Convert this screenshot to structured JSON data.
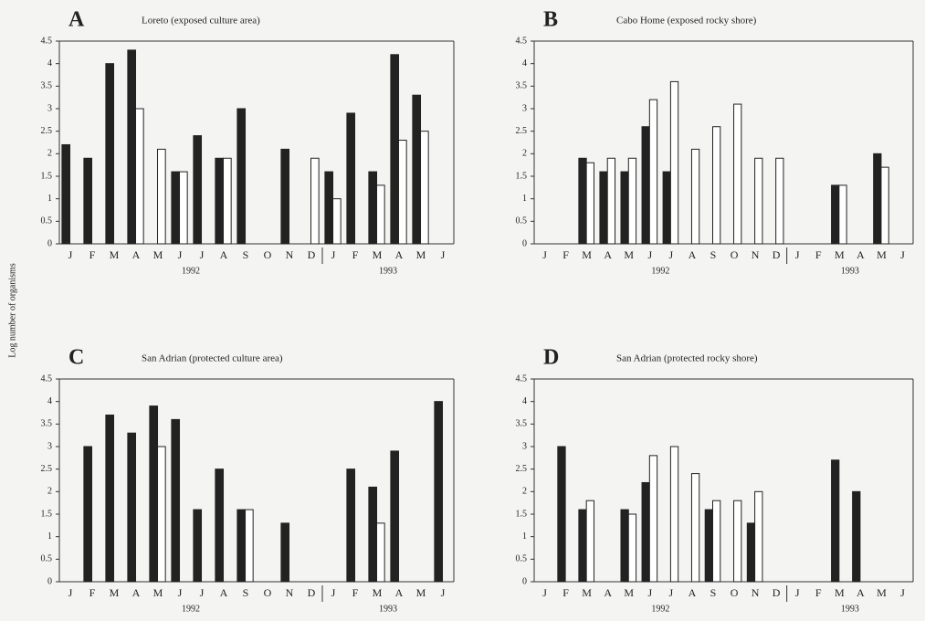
{
  "ylabel": "Log number of organisms",
  "chart_data": [
    {
      "type": "bar",
      "panel": "A",
      "title": "Loreto (exposed culture area)",
      "categories": [
        "J",
        "F",
        "M",
        "A",
        "M",
        "J",
        "J",
        "A",
        "S",
        "O",
        "N",
        "D",
        "J",
        "F",
        "M",
        "A",
        "M",
        "J"
      ],
      "year_labels": [
        "1992",
        "1993"
      ],
      "series": [
        {
          "color": "#222222",
          "values": [
            2.2,
            1.9,
            4.0,
            4.3,
            null,
            1.6,
            2.4,
            1.9,
            3.0,
            null,
            2.1,
            null,
            1.6,
            2.9,
            1.6,
            4.2,
            3.3,
            null
          ]
        },
        {
          "color": "#ffffff",
          "values": [
            null,
            null,
            null,
            3.0,
            2.1,
            1.6,
            null,
            1.9,
            null,
            null,
            null,
            1.9,
            1.0,
            null,
            1.3,
            2.3,
            2.5,
            null
          ]
        }
      ],
      "ylim": [
        0,
        4.5
      ],
      "yticks": [
        0,
        0.5,
        1,
        1.5,
        2,
        2.5,
        3,
        3.5,
        4,
        4.5
      ]
    },
    {
      "type": "bar",
      "panel": "B",
      "title": "Cabo Home (exposed rocky shore)",
      "categories": [
        "J",
        "F",
        "M",
        "A",
        "M",
        "J",
        "J",
        "A",
        "S",
        "O",
        "N",
        "D",
        "J",
        "F",
        "M",
        "A",
        "M",
        "J"
      ],
      "year_labels": [
        "1992",
        "1993"
      ],
      "series": [
        {
          "color": "#222222",
          "values": [
            null,
            null,
            1.9,
            1.6,
            1.6,
            2.6,
            1.6,
            null,
            null,
            null,
            null,
            null,
            null,
            null,
            1.3,
            null,
            2.0,
            null
          ]
        },
        {
          "color": "#ffffff",
          "values": [
            null,
            null,
            1.8,
            1.9,
            1.9,
            3.2,
            3.6,
            2.1,
            2.6,
            3.1,
            1.9,
            1.9,
            null,
            null,
            1.3,
            null,
            1.7,
            null
          ]
        }
      ],
      "ylim": [
        0,
        4.5
      ],
      "yticks": [
        0,
        0.5,
        1,
        1.5,
        2,
        2.5,
        3,
        3.5,
        4,
        4.5
      ]
    },
    {
      "type": "bar",
      "panel": "C",
      "title": "San Adrian (protected culture area)",
      "categories": [
        "J",
        "F",
        "M",
        "A",
        "M",
        "J",
        "J",
        "A",
        "S",
        "O",
        "N",
        "D",
        "J",
        "F",
        "M",
        "A",
        "M",
        "J"
      ],
      "year_labels": [
        "1992",
        "1993"
      ],
      "series": [
        {
          "color": "#222222",
          "values": [
            null,
            3.0,
            3.7,
            3.3,
            3.9,
            3.6,
            1.6,
            2.5,
            1.6,
            null,
            1.3,
            null,
            null,
            2.5,
            2.1,
            2.9,
            null,
            4.0
          ]
        },
        {
          "color": "#ffffff",
          "values": [
            null,
            null,
            null,
            null,
            3.0,
            null,
            null,
            null,
            1.6,
            null,
            null,
            null,
            null,
            null,
            1.3,
            null,
            null,
            null
          ]
        }
      ],
      "ylim": [
        0,
        4.5
      ],
      "yticks": [
        0,
        0.5,
        1,
        1.5,
        2,
        2.5,
        3,
        3.5,
        4,
        4.5
      ]
    },
    {
      "type": "bar",
      "panel": "D",
      "title": "San Adrian (protected rocky shore)",
      "categories": [
        "J",
        "F",
        "M",
        "A",
        "M",
        "J",
        "J",
        "A",
        "S",
        "O",
        "N",
        "D",
        "J",
        "F",
        "M",
        "A",
        "M",
        "J"
      ],
      "year_labels": [
        "1992",
        "1993"
      ],
      "series": [
        {
          "color": "#222222",
          "values": [
            null,
            3.0,
            1.6,
            null,
            1.6,
            2.2,
            null,
            null,
            1.6,
            null,
            1.3,
            null,
            null,
            null,
            2.7,
            2.0,
            null,
            null
          ]
        },
        {
          "color": "#ffffff",
          "values": [
            null,
            null,
            1.8,
            null,
            1.5,
            2.8,
            3.0,
            2.4,
            1.8,
            1.8,
            2.0,
            null,
            null,
            null,
            null,
            null,
            null,
            null
          ]
        }
      ],
      "ylim": [
        0,
        4.5
      ],
      "yticks": [
        0,
        0.5,
        1,
        1.5,
        2,
        2.5,
        3,
        3.5,
        4,
        4.5
      ]
    }
  ]
}
